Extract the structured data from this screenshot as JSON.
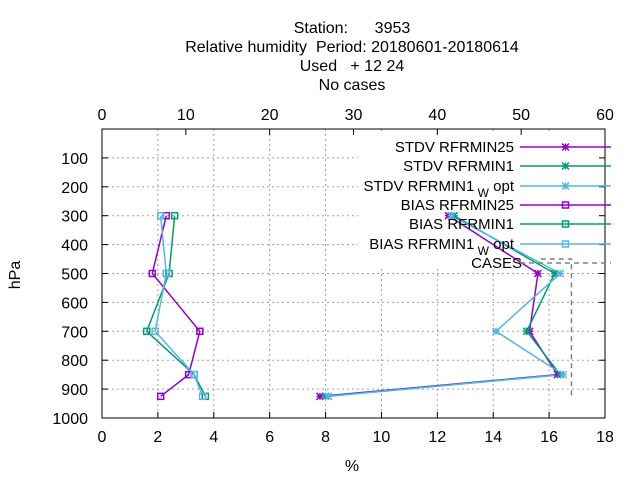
{
  "header": {
    "line1": "Station:      3953",
    "line2": "Relative humidity  Period: 20180601-20180614",
    "line3": "Used   + 12 24",
    "line4": "No cases"
  },
  "chart_data": {
    "type": "line",
    "ylabel": "hPa",
    "xlabel": "%",
    "x_bottom": {
      "lim": [
        0,
        18
      ],
      "ticks": [
        "0",
        "2",
        "4",
        "6",
        "8",
        "10",
        "12",
        "14",
        "16",
        "18"
      ]
    },
    "x_top": {
      "lim": [
        0,
        60
      ],
      "ticks": [
        "0",
        "10",
        "20",
        "30",
        "40",
        "50",
        "60"
      ]
    },
    "y": {
      "lim": [
        1000,
        0
      ],
      "ticks": [
        "100",
        "200",
        "300",
        "400",
        "500",
        "600",
        "700",
        "800",
        "900",
        "1000"
      ]
    },
    "grid": true,
    "legend_position": "top-right",
    "levels": [
      300,
      500,
      700,
      850,
      925
    ],
    "series": [
      {
        "name": "STDV RFRMIN25",
        "kind": "stdv",
        "color": "#9400d3",
        "values": [
          12.4,
          15.6,
          15.3,
          16.3,
          7.8
        ]
      },
      {
        "name": "STDV RFRMIN1",
        "kind": "stdv",
        "color": "#009e73",
        "values": [
          12.6,
          16.2,
          15.2,
          16.4,
          8.0
        ]
      },
      {
        "name": "STDV RFRMIN1",
        "subscript": "W",
        "suffix": " opt",
        "kind": "stdv",
        "color": "#56b4e9",
        "values": [
          12.5,
          16.4,
          14.1,
          16.5,
          8.1
        ]
      },
      {
        "name": "BIAS RFRMIN25",
        "kind": "bias",
        "color": "#9400d3",
        "values": [
          2.3,
          1.8,
          3.5,
          3.1,
          2.1
        ]
      },
      {
        "name": "BIAS RFRMIN1",
        "kind": "bias",
        "color": "#009e73",
        "values": [
          2.6,
          2.4,
          1.6,
          3.3,
          3.7
        ]
      },
      {
        "name": "BIAS RFRMIN1",
        "subscript": "W",
        "suffix": " opt",
        "kind": "bias",
        "color": "#56b4e9",
        "values": [
          2.1,
          2.3,
          1.9,
          3.3,
          3.6
        ]
      }
    ],
    "cases": {
      "name": "CASES",
      "color": "#808080",
      "value_top_axis": 56,
      "from_level": 450,
      "to_level": 925
    }
  }
}
